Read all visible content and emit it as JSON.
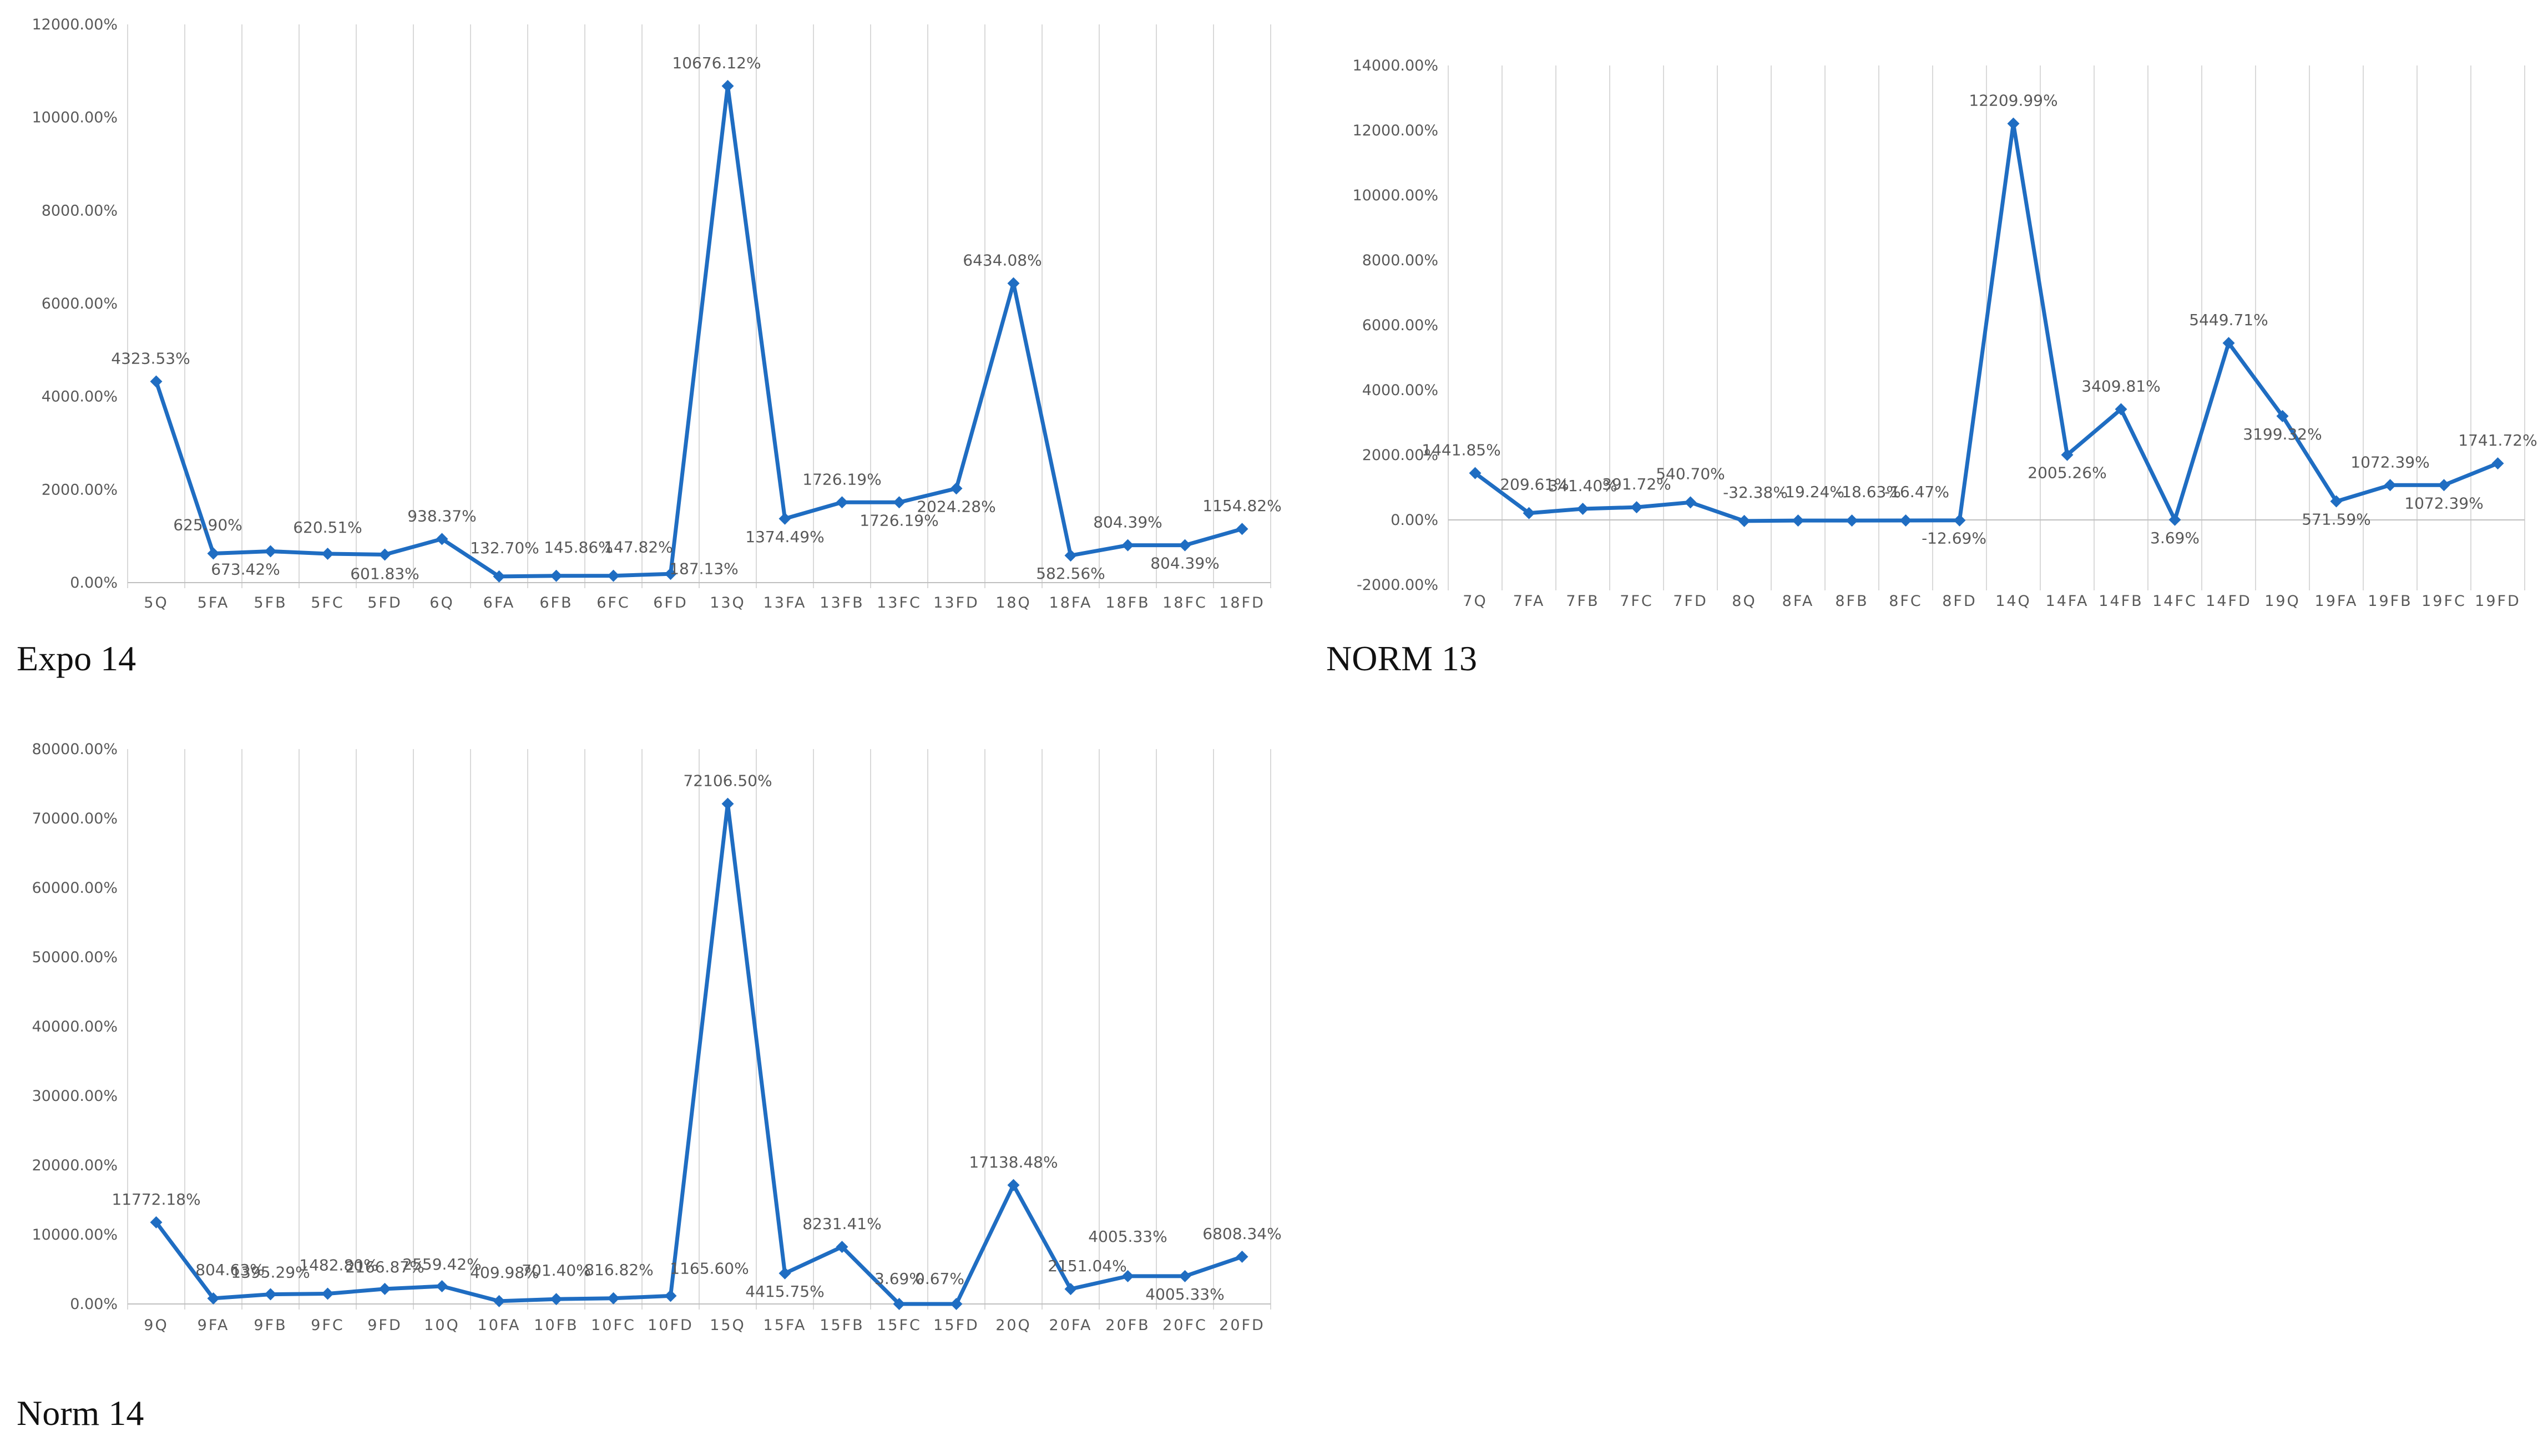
{
  "chart_data": [
    {
      "type": "line",
      "caption": "Expo 14",
      "categories": [
        "5Q",
        "5FA",
        "5FB",
        "5FC",
        "5FD",
        "6Q",
        "6FA",
        "6FB",
        "6FC",
        "6FD",
        "13Q",
        "13FA",
        "13FB",
        "13FC",
        "13FD",
        "18Q",
        "18FA",
        "18FB",
        "18FC",
        "18FD"
      ],
      "series": [
        {
          "values": [
            4323.53,
            625.9,
            673.42,
            620.51,
            601.83,
            938.37,
            132.7,
            145.86,
            147.82,
            187.13,
            10676.12,
            1374.49,
            1726.19,
            1726.19,
            2024.28,
            6434.08,
            582.56,
            804.39,
            804.39,
            1154.82
          ]
        }
      ],
      "data_labels": [
        "4323.53%",
        "625.90%",
        "673.42%",
        "620.51%",
        "601.83%",
        "938.37%",
        "132.70%",
        "145.86%",
        "147.82%",
        "187.13%",
        "10676.12%",
        "1374.49%",
        "1726.19%",
        "1726.19%",
        "2024.28%",
        "6434.08%",
        "582.56%",
        "804.39%",
        "804.39%",
        "1154.82%"
      ],
      "yticks": [
        "0.00%",
        "2000.00%",
        "4000.00%",
        "6000.00%",
        "8000.00%",
        "10000.00%",
        "12000.00%"
      ],
      "ylim": [
        0,
        12000
      ],
      "grid": "vertical",
      "line_color": "#1F6DC2"
    },
    {
      "type": "line",
      "caption": "NORM 13",
      "categories": [
        "7Q",
        "7FA",
        "7FB",
        "7FC",
        "7FD",
        "8Q",
        "8FA",
        "8FB",
        "8FC",
        "8FD",
        "14Q",
        "14FA",
        "14FB",
        "14FC",
        "14FD",
        "19Q",
        "19FA",
        "19FB",
        "19FC",
        "19FD"
      ],
      "series": [
        {
          "values": [
            1441.85,
            209.61,
            341.4,
            391.72,
            540.7,
            -32.38,
            -19.24,
            -18.63,
            -16.47,
            -12.69,
            12209.99,
            2005.26,
            3409.81,
            3.69,
            5449.71,
            3199.32,
            571.59,
            1072.39,
            1072.39,
            1741.72
          ]
        }
      ],
      "data_labels": [
        "1441.85%",
        "209.61%",
        "341.40%",
        "391.72%",
        "540.70%",
        "-32.38%",
        "-19.24%",
        "-18.63%",
        "-16.47%",
        "-12.69%",
        "12209.99%",
        "2005.26%",
        "3409.81%",
        "3.69%",
        "5449.71%",
        "3199.32%",
        "571.59%",
        "1072.39%",
        "1072.39%",
        "1741.72%"
      ],
      "yticks": [
        "-2000.00%",
        "0.00%",
        "2000.00%",
        "4000.00%",
        "6000.00%",
        "8000.00%",
        "10000.00%",
        "12000.00%",
        "14000.00%"
      ],
      "ylim": [
        -2000,
        14000
      ],
      "grid": "vertical",
      "line_color": "#1F6DC2"
    },
    {
      "type": "line",
      "caption": "Norm 14",
      "categories": [
        "9Q",
        "9FA",
        "9FB",
        "9FC",
        "9FD",
        "10Q",
        "10FA",
        "10FB",
        "10FC",
        "10FD",
        "15Q",
        "15FA",
        "15FB",
        "15FC",
        "15FD",
        "20Q",
        "20FA",
        "20FB",
        "20FC",
        "20FD"
      ],
      "series": [
        {
          "values": [
            11772.18,
            804.63,
            1395.29,
            1482.8,
            2166.87,
            2559.42,
            409.98,
            701.4,
            816.82,
            1165.6,
            72106.5,
            4415.75,
            8231.41,
            3.69,
            0.67,
            17138.48,
            2151.04,
            4005.33,
            4005.33,
            6808.34
          ]
        }
      ],
      "data_labels": [
        "11772.18%",
        "804.63%",
        "1395.29%",
        "1482.80%",
        "2166.87%",
        "2559.42%",
        "409.98%",
        "701.40%",
        "816.82%",
        "1165.60%",
        "72106.50%",
        "4415.75%",
        "8231.41%",
        "3.69%",
        "0.67%",
        "17138.48%",
        "2151.04%",
        "4005.33%",
        "4005.33%",
        "6808.34%"
      ],
      "yticks": [
        "0.00%",
        "10000.00%",
        "20000.00%",
        "30000.00%",
        "40000.00%",
        "50000.00%",
        "60000.00%",
        "70000.00%",
        "80000.00%"
      ],
      "ylim": [
        0,
        80000
      ],
      "grid": "vertical",
      "line_color": "#1F6DC2"
    }
  ]
}
